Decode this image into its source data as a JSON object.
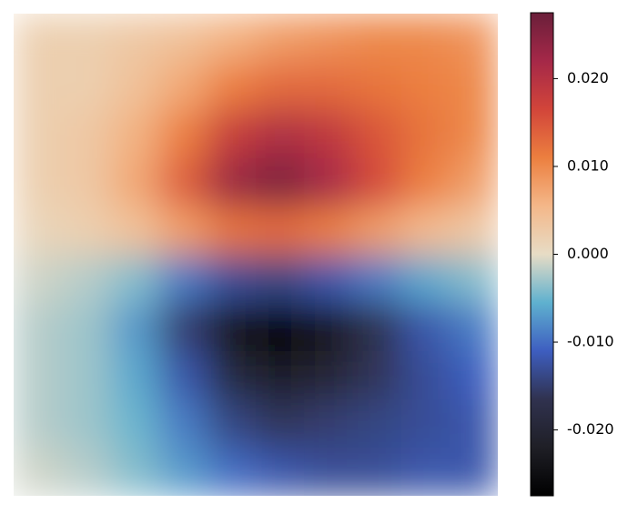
{
  "chart_data": {
    "type": "contour",
    "z": [
      [
        0.002,
        0.002,
        0.003,
        0.004,
        0.006,
        0.008,
        0.009,
        0.01,
        0.01,
        0.009
      ],
      [
        0.002,
        0.002,
        0.004,
        0.007,
        0.011,
        0.013,
        0.013,
        0.012,
        0.011,
        0.01
      ],
      [
        0.002,
        0.003,
        0.006,
        0.011,
        0.018,
        0.021,
        0.019,
        0.015,
        0.012,
        0.01
      ],
      [
        0.002,
        0.003,
        0.007,
        0.014,
        0.023,
        0.026,
        0.022,
        0.016,
        0.011,
        0.008
      ],
      [
        0.001,
        0.002,
        0.004,
        0.008,
        0.012,
        0.013,
        0.011,
        0.008,
        0.005,
        0.003
      ],
      [
        -0.001,
        -0.002,
        -0.004,
        -0.009,
        -0.013,
        -0.014,
        -0.012,
        -0.009,
        -0.006,
        -0.004
      ],
      [
        -0.002,
        -0.003,
        -0.007,
        -0.015,
        -0.024,
        -0.027,
        -0.023,
        -0.017,
        -0.012,
        -0.009
      ],
      [
        -0.002,
        -0.003,
        -0.006,
        -0.012,
        -0.019,
        -0.022,
        -0.02,
        -0.016,
        -0.013,
        -0.011
      ],
      [
        -0.002,
        -0.003,
        -0.005,
        -0.009,
        -0.014,
        -0.016,
        -0.015,
        -0.014,
        -0.013,
        -0.012
      ],
      [
        -0.001,
        -0.002,
        -0.004,
        -0.007,
        -0.01,
        -0.012,
        -0.013,
        -0.013,
        -0.012,
        -0.012
      ]
    ],
    "zlim": [
      -0.0275,
      0.0275
    ],
    "colormap": [
      "#000000",
      "#1f1f26",
      "#30324f",
      "#3e5ec0",
      "#5fb1cf",
      "#e7dcc5",
      "#f4b789",
      "#ec7f3f",
      "#d2453a",
      "#a52848",
      "#6a1f3a"
    ],
    "colorbar_ticks": [
      {
        "value": -0.02,
        "label": "-0.020"
      },
      {
        "value": -0.01,
        "label": "-0.010"
      },
      {
        "value": 0,
        "label": "0.000"
      },
      {
        "value": 0.01,
        "label": "0.010"
      },
      {
        "value": 0.02,
        "label": "0.020"
      }
    ]
  }
}
